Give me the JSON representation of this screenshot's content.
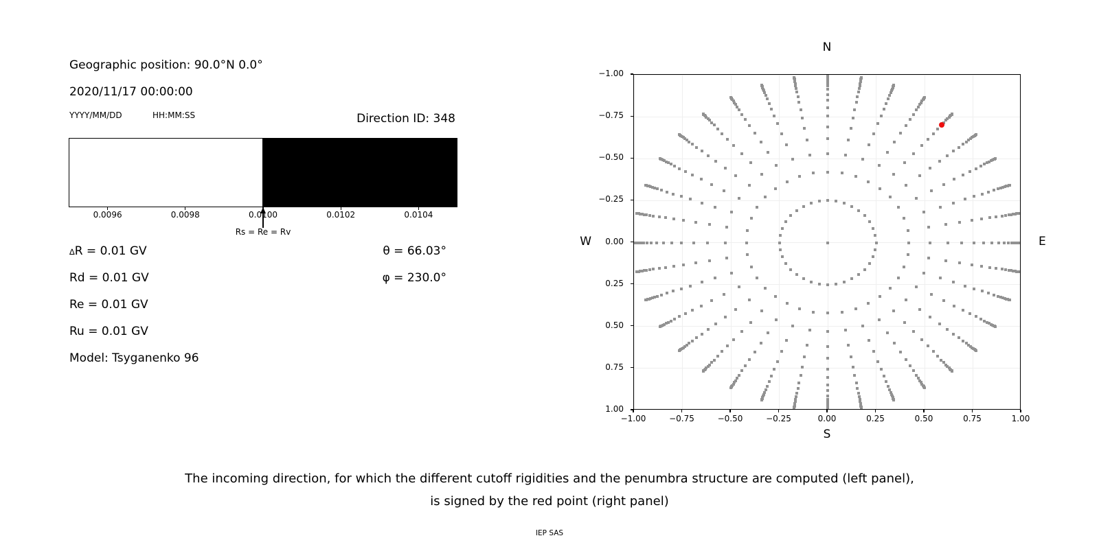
{
  "header": {
    "geographic_position": "Geographic position: 90.0°N 0.0°",
    "datetime": "2020/11/17 00:00:00",
    "date_format_label": "YYYY/MM/DD",
    "time_format_label": "HH:MM:SS",
    "direction_id": "Direction ID: 348"
  },
  "values": {
    "delta_sym": "∆",
    "delta_rest": "R = 0.01 GV",
    "rd": "Rd = 0.01 GV",
    "re": "Re = 0.01 GV",
    "ru": "Ru = 0.01 GV",
    "model": "Model: Tsyganenko 96",
    "theta": "θ = 66.03°",
    "phi": "φ = 230.0°"
  },
  "sky": {
    "labels": {
      "north": "N",
      "south": "S",
      "east": "E",
      "west": "W"
    }
  },
  "caption": {
    "line1": "The incoming direction, for which the different cutoff rigidities and the penumbra structure are computed (left panel),",
    "line2": "is signed by the red point (right panel)",
    "credit": "IEP SAS"
  },
  "chart_data": [
    {
      "type": "bar",
      "name": "penumbra-structure",
      "xlim": [
        0.0095,
        0.0105
      ],
      "segments": [
        {
          "start": 0.0095,
          "end": 0.01,
          "color": "#ffffff",
          "meaning": "allowed (white)"
        },
        {
          "start": 0.01,
          "end": 0.0105,
          "color": "#000000",
          "meaning": "forbidden (black)"
        }
      ],
      "ticks": {
        "values": [
          0.0096,
          0.0098,
          0.01,
          0.0102,
          0.0104
        ],
        "labels": [
          "0.0096",
          "0.0098",
          "0.0100",
          "0.0102",
          "0.0104"
        ]
      },
      "annotation": {
        "text": "Rs = Re = Rv",
        "x": 0.01
      },
      "grid": false
    },
    {
      "type": "scatter",
      "name": "incoming-direction-grid",
      "xlim": [
        -1.0,
        1.0
      ],
      "ylim": [
        -1.0,
        1.0
      ],
      "ticks": {
        "values": [
          -1.0,
          -0.75,
          -0.5,
          -0.25,
          0.0,
          0.25,
          0.5,
          0.75,
          1.0
        ],
        "labels": [
          "−1.00",
          "−0.75",
          "−0.50",
          "−0.25",
          "0.00",
          "0.25",
          "0.50",
          "0.75",
          "1.00"
        ]
      },
      "grid": true,
      "point_color": "#929292",
      "azimuth_start_deg": 0,
      "azimuth_step_deg": 10,
      "azimuth_count": 36,
      "ray_radii": [
        0.25,
        0.42,
        0.53,
        0.62,
        0.69,
        0.755,
        0.805,
        0.848,
        0.883,
        0.913,
        0.934,
        0.951,
        0.962,
        0.974,
        0.983,
        0.99,
        0.996,
        1.0
      ],
      "center_point": {
        "x": 0.0,
        "y": 0.0
      },
      "highlight_point": {
        "x": 0.587,
        "y": 0.7,
        "color": "#ee0f0f"
      }
    }
  ]
}
